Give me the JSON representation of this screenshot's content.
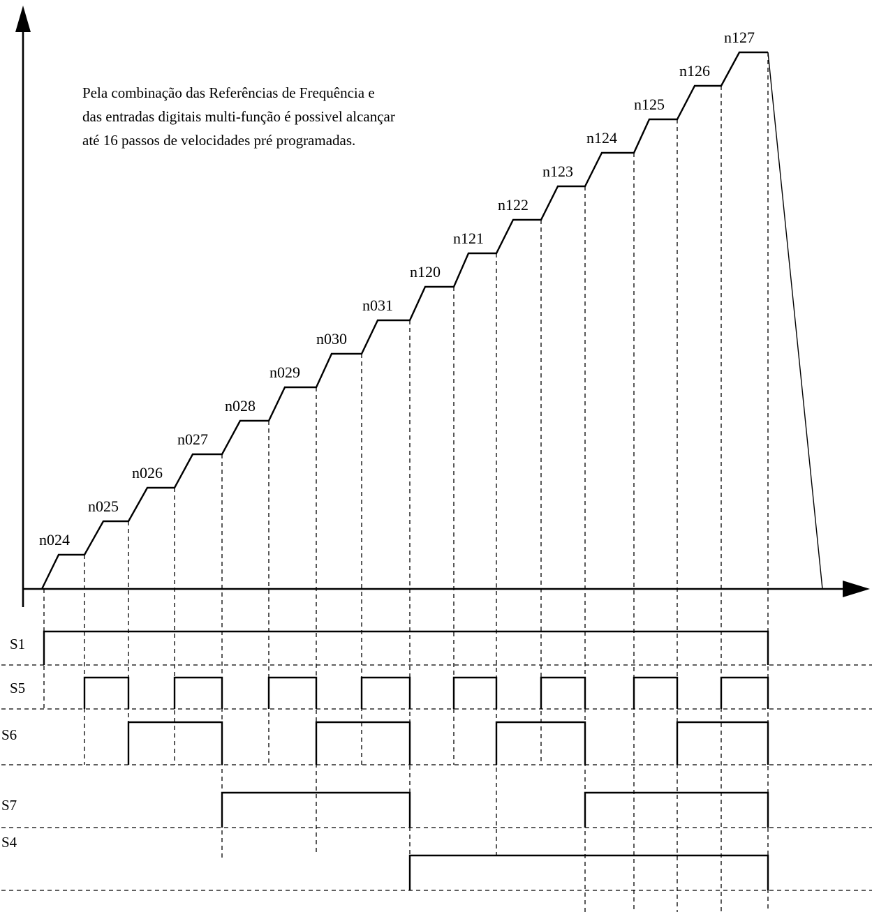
{
  "caption": [
    "Pela combinação das Referências de Frequência e",
    "das entradas digitais multi-função é possivel alcançar",
    "até 16 passos de velocidades pré programadas."
  ],
  "steps": [
    "n024",
    "n025",
    "n026",
    "n027",
    "n028",
    "n029",
    "n030",
    "n031",
    "n120",
    "n121",
    "n122",
    "n123",
    "n124",
    "n125",
    "n126",
    "n127"
  ],
  "signals": [
    {
      "name": "S1",
      "pattern": [
        1,
        1,
        1,
        1,
        1,
        1,
        1,
        1,
        1,
        1,
        1,
        1,
        1,
        1,
        1,
        1
      ]
    },
    {
      "name": "S5",
      "pattern": [
        0,
        1,
        0,
        1,
        0,
        1,
        0,
        1,
        0,
        1,
        0,
        1,
        0,
        1,
        0,
        1
      ]
    },
    {
      "name": "S6",
      "pattern": [
        0,
        0,
        1,
        1,
        0,
        0,
        1,
        1,
        0,
        0,
        1,
        1,
        0,
        0,
        1,
        1
      ]
    },
    {
      "name": "S7",
      "pattern": [
        0,
        0,
        0,
        0,
        1,
        1,
        1,
        1,
        0,
        0,
        0,
        0,
        1,
        1,
        1,
        1
      ]
    },
    {
      "name": "S4",
      "pattern": [
        0,
        0,
        0,
        0,
        0,
        0,
        0,
        0,
        1,
        1,
        1,
        1,
        1,
        1,
        1,
        1
      ]
    }
  ]
}
